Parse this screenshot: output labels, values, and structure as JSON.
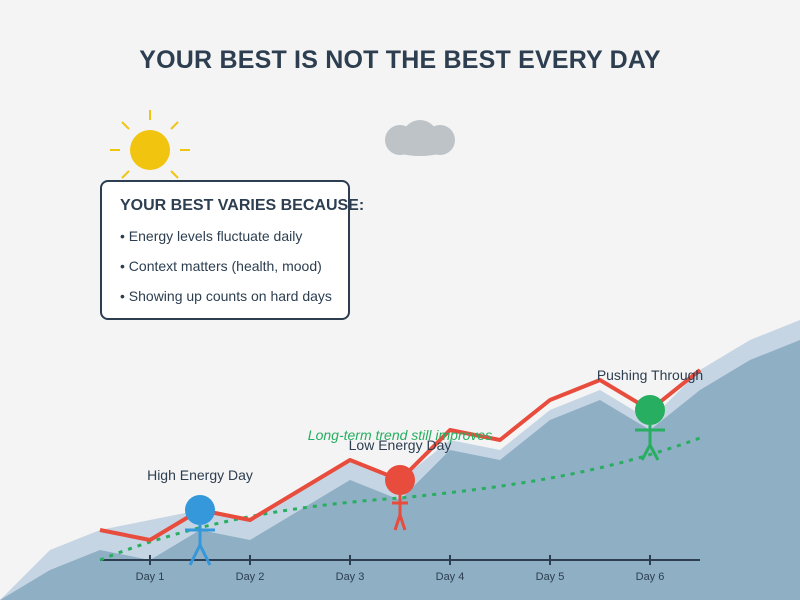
{
  "title": "YOUR BEST IS NOT THE BEST EVERY DAY",
  "info_box": {
    "heading": "YOUR BEST VARIES BECAUSE:",
    "items": [
      "• Energy levels fluctuate daily",
      "• Context matters (health, mood)",
      "• Showing up counts on hard days"
    ]
  },
  "annotations": {
    "high_energy": "High Energy Day",
    "low_energy": "Low Energy Day",
    "pushing_through": "Pushing Through",
    "trend": "Long-term trend still improves"
  },
  "axis": {
    "ticks": [
      "Day 1",
      "Day 2",
      "Day 3",
      "Day 4",
      "Day 5",
      "Day 6"
    ]
  },
  "colors": {
    "performance_line": "#e74c3c",
    "trend_line": "#27ae60",
    "high_energy_figure": "#3498db",
    "low_energy_figure": "#e74c3c",
    "pushing_figure": "#27ae60",
    "sun": "#f1c40f",
    "cloud": "#bdc3c7",
    "text": "#2c3e50"
  },
  "icons": {
    "sun": "sun-icon",
    "cloud": "cloud-icon"
  }
}
